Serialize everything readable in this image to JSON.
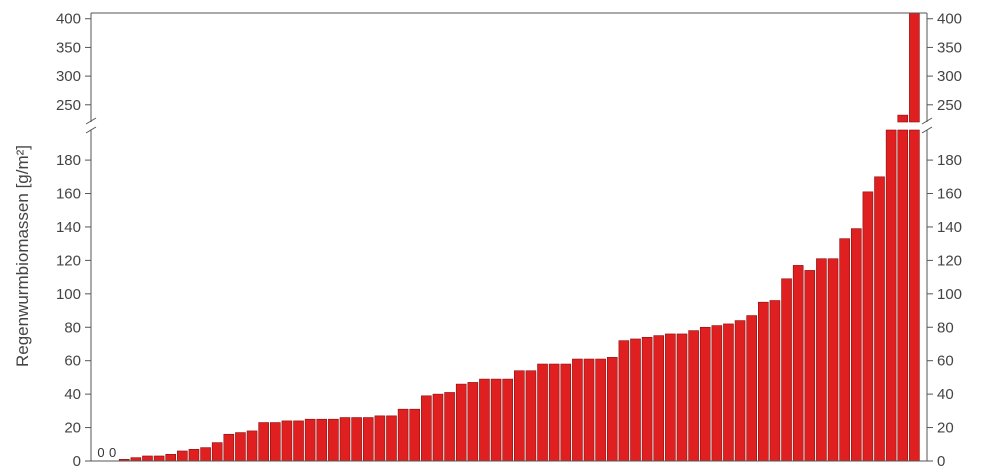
{
  "chart_data": {
    "type": "bar",
    "title": "",
    "xlabel": "",
    "ylabel": "Regenwurmbiomassen [g/m²]",
    "axis_break": true,
    "ylim_lower": [
      0,
      198
    ],
    "ylim_upper": [
      220,
      410
    ],
    "yticks_lower": [
      0,
      20,
      40,
      60,
      80,
      100,
      120,
      140,
      160,
      180
    ],
    "yticks_upper": [
      250,
      300,
      350,
      400
    ],
    "grid": false,
    "bar_color": "#e02020",
    "zero_labels": [
      "0",
      "0"
    ],
    "values": [
      0,
      0,
      1,
      2,
      3,
      3,
      4,
      6,
      7,
      8,
      11,
      16,
      17,
      18,
      23,
      23,
      24,
      24,
      25,
      25,
      25,
      26,
      26,
      26,
      27,
      27,
      31,
      31,
      39,
      40,
      41,
      46,
      47,
      49,
      49,
      49,
      54,
      54,
      58,
      58,
      58,
      61,
      61,
      61,
      62,
      72,
      73,
      74,
      75,
      76,
      76,
      78,
      80,
      81,
      82,
      84,
      87,
      95,
      96,
      109,
      117,
      114,
      121,
      121,
      133,
      139,
      161,
      170,
      200,
      232,
      415
    ]
  }
}
